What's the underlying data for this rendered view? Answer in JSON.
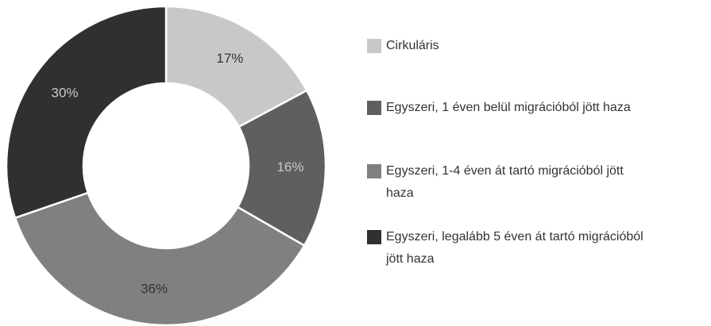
{
  "chart_data": {
    "type": "donut",
    "categories": [
      "Cirkuláris",
      "Egyszeri, 1 éven belül migrációból jött haza",
      "Egyszeri, 1-4 éven át tartó migrációból jött haza",
      "Egyszeri, legalább 5 éven át tartó migrációból jött haza"
    ],
    "values": [
      17,
      16,
      36,
      30
    ],
    "value_labels": [
      "17%",
      "16%",
      "36%",
      "30%"
    ],
    "colors": [
      "#c8c8c8",
      "#5f5f5f",
      "#808080",
      "#303030"
    ],
    "label_colors": [
      "#333333",
      "#c8c8c8",
      "#333333",
      "#c8c8c8"
    ],
    "legend": "right"
  }
}
